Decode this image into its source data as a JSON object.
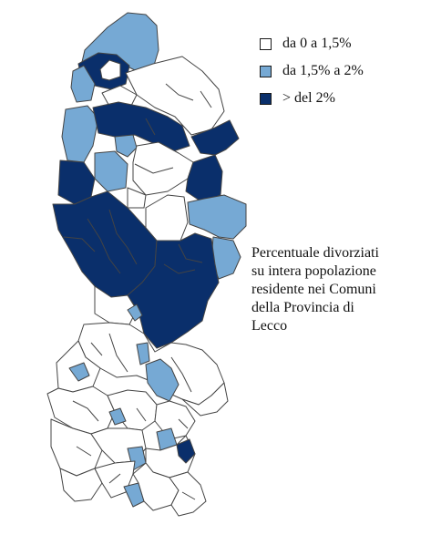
{
  "colors": {
    "low": "#ffffff",
    "mid": "#76a9d4",
    "high": "#0a2f6b",
    "border": "#444444"
  },
  "legend": {
    "items": [
      {
        "label": "da 0 a 1,5%",
        "color": "#ffffff"
      },
      {
        "label": "da 1,5% a 2%",
        "color": "#76a9d4"
      },
      {
        "label": "> del 2%",
        "color": "#0a2f6b"
      }
    ]
  },
  "caption": {
    "lines": [
      "Percentuale divorziati",
      "su intera popolazione",
      "residente  nei Comuni",
      "della Provincia di",
      "Lecco"
    ]
  }
}
